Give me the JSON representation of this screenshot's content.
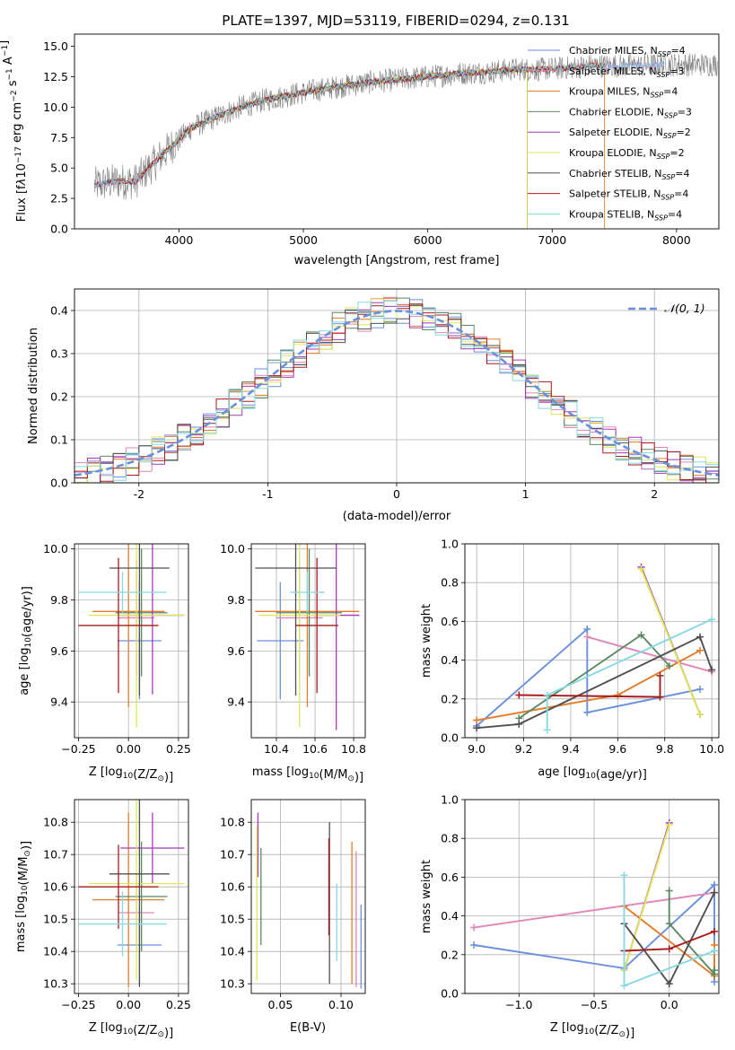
{
  "chart_data": [
    {
      "type": "line",
      "title": "PLATE=1397, MJD=53119, FIBERID=0294, z=0.131",
      "xlabel": "wavelength [Angstrom, rest frame]",
      "ylabel": "Flux [f",
      "ylabel_parts": [
        "Flux [f",
        "λ",
        "10",
        "−17",
        " erg cm",
        "−2",
        " s",
        "−1",
        " A",
        "−1",
        "]"
      ],
      "xlim": [
        3160,
        8340
      ],
      "ylim": [
        0,
        16
      ],
      "xticks": [
        4000,
        5000,
        6000,
        7000,
        8000
      ],
      "yticks": [
        0.0,
        2.5,
        5.0,
        7.5,
        10.0,
        12.5,
        15.0
      ],
      "legend_location": "top-right",
      "legend": [
        {
          "pre": "Chabrier MILES, N",
          "sub": "SSP",
          "post": "=4",
          "color": "#6a8fdc"
        },
        {
          "pre": "Salpeter MILES, N",
          "sub": "SSP",
          "post": "=3",
          "color": "#e086b8"
        },
        {
          "pre": "Kroupa MILES, N",
          "sub": "SSP",
          "post": "=4",
          "color": "#e07c2a"
        },
        {
          "pre": "Chabrier ELODIE, N",
          "sub": "SSP",
          "post": "=3",
          "color": "#5b8a63"
        },
        {
          "pre": "Salpeter ELODIE, N",
          "sub": "SSP",
          "post": "=2",
          "color": "#a23ab8"
        },
        {
          "pre": "Kroupa ELODIE, N",
          "sub": "SSP",
          "post": "=2",
          "color": "#dfe75a"
        },
        {
          "pre": "Chabrier STELIB, N",
          "sub": "SSP",
          "post": "=4",
          "color": "#505050"
        },
        {
          "pre": "Salpeter STELIB, N",
          "sub": "SSP",
          "post": "=4",
          "color": "#a71b1b"
        },
        {
          "pre": "Kroupa STELIB, N",
          "sub": "SSP",
          "post": "=4",
          "color": "#86d8e2"
        }
      ],
      "continuum_x": [
        3320,
        3500,
        3650,
        3800,
        3950,
        4100,
        4300,
        4500,
        4700,
        4900,
        5100,
        5300,
        5500,
        5700,
        5900,
        6100,
        6300,
        6500,
        6700,
        6900,
        7100,
        7300,
        7500,
        7700,
        7900,
        8100,
        8300
      ],
      "continuum_y": [
        3.6,
        3.9,
        3.9,
        5.4,
        6.9,
        8.3,
        9.2,
        10.0,
        10.6,
        11.0,
        11.4,
        11.7,
        12.0,
        12.2,
        12.4,
        12.6,
        12.8,
        12.9,
        13.1,
        13.1,
        13.2,
        13.4,
        13.4,
        13.4,
        13.5,
        13.5,
        13.5
      ],
      "data_xrange": [
        3320,
        8330
      ],
      "model_xranges": [
        [
          3320,
          7900
        ],
        [
          3320,
          7900
        ],
        [
          3500,
          7420
        ],
        [
          3900,
          6800
        ],
        [
          3900,
          6800
        ],
        [
          3900,
          6800
        ],
        [
          3320,
          7420
        ],
        [
          3320,
          7420
        ],
        [
          3320,
          7900
        ]
      ]
    },
    {
      "type": "line",
      "xlabel": "(data-model)/error",
      "ylabel": "Normed distribution",
      "xlim": [
        -2.5,
        2.5
      ],
      "ylim": [
        0,
        0.45
      ],
      "xticks": [
        -2,
        -1,
        0,
        1,
        2
      ],
      "yticks": [
        0.0,
        0.1,
        0.2,
        0.3,
        0.4
      ],
      "legend_location": "top-right",
      "legend": [
        {
          "label": "𝒩(0, 1)",
          "color": "#6a8fdc"
        }
      ],
      "gaussian": {
        "mean": 0,
        "sigma": 1
      },
      "bin_width": 0.1,
      "series_colors": [
        "#6a8fdc",
        "#e086b8",
        "#e07c2a",
        "#5b8a63",
        "#a23ab8",
        "#dfe75a",
        "#505050",
        "#a71b1b",
        "#86d8e2"
      ]
    },
    {
      "type": "scatter",
      "xlabel": "Z [log10(Z/Z⊙)]",
      "xlabel_parts": [
        "Z [log",
        "10",
        "(Z/Z",
        "⊙",
        ")]"
      ],
      "ylabel": "age [log10(age/yr)]",
      "ylabel_parts": [
        "age  [log",
        "10",
        "(age/yr)]"
      ],
      "xlim": [
        -0.27,
        0.3
      ],
      "ylim": [
        9.26,
        10.02
      ],
      "xticks": [
        -0.25,
        0.0,
        0.25
      ],
      "xticklabels": [
        "−0.25",
        "0.00",
        "0.25"
      ],
      "yticks": [
        9.4,
        9.6,
        9.8,
        10.0
      ],
      "points": [
        {
          "color": "#6a8fdc",
          "x": 0.055,
          "xerr": 0.11,
          "y": 9.64,
          "yerr": 0.23
        },
        {
          "color": "#e086b8",
          "x": 0.04,
          "xerr": 0.09,
          "y": 9.73,
          "yerr": 0.23
        },
        {
          "color": "#e07c2a",
          "x": 0.0,
          "xerr": 0.18,
          "y": 9.755,
          "yerr": 0.375
        },
        {
          "color": "#5b8a63",
          "x": 0.065,
          "xerr": 0.13,
          "y": 9.75,
          "yerr": 0.25
        },
        {
          "color": "#a23ab8",
          "x": 0.12,
          "xerr": 0.16,
          "y": 9.74,
          "yerr": 0.31
        },
        {
          "color": "#dfe75a",
          "x": 0.04,
          "xerr": 0.24,
          "y": 9.74,
          "yerr": 0.44
        },
        {
          "color": "#505050",
          "x": 0.055,
          "xerr": 0.15,
          "y": 9.925,
          "yerr": 0.5
        },
        {
          "color": "#a71b1b",
          "x": -0.05,
          "xerr": 0.2,
          "y": 9.7,
          "yerr": 0.265
        },
        {
          "color": "#86d8e2",
          "x": -0.03,
          "xerr": 0.22,
          "y": 9.83,
          "yerr": 0.08
        }
      ]
    },
    {
      "type": "scatter",
      "xlabel": "mass [log10(M/M⊙)]",
      "xlabel_parts": [
        "mass [log",
        "10",
        "(M/M",
        "⊙",
        ")]"
      ],
      "xlim": [
        10.27,
        10.86
      ],
      "ylim": [
        9.26,
        10.02
      ],
      "xticks": [
        10.4,
        10.6,
        10.8
      ],
      "yticks": [
        9.4,
        9.6,
        9.8,
        10.0
      ],
      "points": [
        {
          "color": "#6a8fdc",
          "x": 10.42,
          "xerr": 0.12,
          "y": 9.64,
          "yerr": 0.23
        },
        {
          "color": "#e086b8",
          "x": 10.52,
          "xerr": 0.12,
          "y": 9.73,
          "yerr": 0.23
        },
        {
          "color": "#e07c2a",
          "x": 10.56,
          "xerr": 0.27,
          "y": 9.755,
          "yerr": 0.375
        },
        {
          "color": "#5b8a63",
          "x": 10.57,
          "xerr": 0.17,
          "y": 9.75,
          "yerr": 0.25
        },
        {
          "color": "#a23ab8",
          "x": 10.71,
          "xerr": 0.12,
          "y": 9.74,
          "yerr": 0.45
        },
        {
          "color": "#dfe75a",
          "x": 10.52,
          "xerr": 0.21,
          "y": 9.74,
          "yerr": 0.44
        },
        {
          "color": "#505050",
          "x": 10.5,
          "xerr": 0.21,
          "y": 9.925,
          "yerr": 0.5
        },
        {
          "color": "#a71b1b",
          "x": 10.61,
          "xerr": 0.11,
          "y": 9.7,
          "yerr": 0.265
        },
        {
          "color": "#86d8e2",
          "x": 10.56,
          "xerr": 0.09,
          "y": 9.83,
          "yerr": 0.08
        }
      ]
    },
    {
      "type": "line",
      "xlabel": "age [log10(age/yr)]",
      "xlabel_parts": [
        "age  [log",
        "10",
        "(age/yr)]"
      ],
      "ylabel": "mass weight",
      "xlim": [
        8.95,
        10.03
      ],
      "ylim": [
        0.0,
        1.0
      ],
      "xticks": [
        9.0,
        9.2,
        9.4,
        9.6,
        9.8,
        10.0
      ],
      "yticks": [
        0.0,
        0.2,
        0.4,
        0.6,
        0.8,
        1.0
      ],
      "series": [
        {
          "color": "#6a8fdc",
          "x": [
            9.0,
            9.47,
            9.47,
            9.95
          ],
          "y": [
            0.06,
            0.56,
            0.13,
            0.25
          ]
        },
        {
          "color": "#e086b8",
          "x": [
            9.47,
            10.0
          ],
          "y": [
            0.52,
            0.34
          ]
        },
        {
          "color": "#e07c2a",
          "x": [
            9.0,
            9.6,
            9.95
          ],
          "y": [
            0.09,
            0.22,
            0.45
          ]
        },
        {
          "color": "#5b8a63",
          "x": [
            9.18,
            9.7,
            9.82
          ],
          "y": [
            0.1,
            0.53,
            0.37
          ]
        },
        {
          "color": "#a23ab8",
          "x": [
            9.7,
            9.95
          ],
          "y": [
            0.88,
            0.12
          ]
        },
        {
          "color": "#dfe75a",
          "x": [
            9.7,
            9.95
          ],
          "y": [
            0.87,
            0.12
          ]
        },
        {
          "color": "#505050",
          "x": [
            9.0,
            9.18,
            9.95,
            10.0
          ],
          "y": [
            0.05,
            0.07,
            0.52,
            0.35
          ]
        },
        {
          "color": "#a71b1b",
          "x": [
            9.18,
            9.78,
            9.78
          ],
          "y": [
            0.22,
            0.21,
            0.32
          ]
        },
        {
          "color": "#86d8e2",
          "x": [
            9.3,
            9.3,
            10.0
          ],
          "y": [
            0.04,
            0.22,
            0.61
          ]
        }
      ]
    },
    {
      "type": "scatter",
      "xlabel": "Z [log10(Z/Z⊙)]",
      "xlabel_parts": [
        "Z [log",
        "10",
        "(Z/Z",
        "⊙",
        ")]"
      ],
      "ylabel": "mass [log10(M/M⊙)]",
      "ylabel_parts": [
        "mass [log",
        "10",
        "(M/M",
        "⊙",
        ")]"
      ],
      "xlim": [
        -0.27,
        0.3
      ],
      "ylim": [
        10.27,
        10.87
      ],
      "xticks": [
        -0.25,
        0.0,
        0.25
      ],
      "xticklabels": [
        "−0.25",
        "0.00",
        "0.25"
      ],
      "yticks": [
        10.3,
        10.4,
        10.5,
        10.6,
        10.7,
        10.8
      ],
      "points": [
        {
          "color": "#6a8fdc",
          "x": 0.055,
          "xerr": 0.11,
          "y": 10.42,
          "yerr": 0.12
        },
        {
          "color": "#e086b8",
          "x": 0.04,
          "xerr": 0.09,
          "y": 10.52,
          "yerr": 0.12
        },
        {
          "color": "#e07c2a",
          "x": 0.0,
          "xerr": 0.18,
          "y": 10.56,
          "yerr": 0.27
        },
        {
          "color": "#5b8a63",
          "x": 0.065,
          "xerr": 0.13,
          "y": 10.57,
          "yerr": 0.17
        },
        {
          "color": "#a23ab8",
          "x": 0.12,
          "xerr": 0.16,
          "y": 10.72,
          "yerr": 0.11
        },
        {
          "color": "#dfe75a",
          "x": 0.04,
          "xerr": 0.24,
          "y": 10.61,
          "yerr": 0.3
        },
        {
          "color": "#505050",
          "x": 0.055,
          "xerr": 0.15,
          "y": 10.64,
          "yerr": 0.35
        },
        {
          "color": "#a71b1b",
          "x": -0.05,
          "xerr": 0.2,
          "y": 10.6,
          "yerr": 0.13
        },
        {
          "color": "#86d8e2",
          "x": -0.03,
          "xerr": 0.22,
          "y": 10.485,
          "yerr": 0.1
        }
      ]
    },
    {
      "type": "scatter",
      "xlabel": "E(B-V)",
      "xlim": [
        0.026,
        0.12
      ],
      "ylim": [
        10.27,
        10.87
      ],
      "xticks": [
        0.05,
        0.1
      ],
      "xticklabels": [
        "0.05",
        "0.10"
      ],
      "yticks": [
        10.3,
        10.4,
        10.5,
        10.6,
        10.7,
        10.8
      ],
      "points": [
        {
          "color": "#6a8fdc",
          "x": 0.1165,
          "y": 10.415,
          "yerr": 0.13
        },
        {
          "color": "#e086b8",
          "x": 0.1125,
          "y": 10.5,
          "yerr": 0.21
        },
        {
          "color": "#e07c2a",
          "x": 0.109,
          "y": 10.52,
          "yerr": 0.22
        },
        {
          "color": "#5b8a63",
          "x": 0.034,
          "y": 10.57,
          "yerr": 0.15
        },
        {
          "color": "#a23ab8",
          "x": 0.0315,
          "y": 10.73,
          "yerr": 0.1
        },
        {
          "color": "#dfe75a",
          "x": 0.0305,
          "y": 10.55,
          "yerr": 0.24
        },
        {
          "color": "#505050",
          "x": 0.0905,
          "y": 10.55,
          "yerr": 0.25
        },
        {
          "color": "#a71b1b",
          "x": 0.09,
          "y": 10.6,
          "yerr": 0.15
        },
        {
          "color": "#86d8e2",
          "x": 0.0965,
          "y": 10.49,
          "yerr": 0.12
        }
      ]
    },
    {
      "type": "line",
      "xlabel": "Z [log10(Z/Z⊙)]",
      "xlabel_parts": [
        "Z [log",
        "10",
        "(Z/Z",
        "⊙",
        ")]"
      ],
      "ylabel": "mass weight",
      "xlim": [
        -1.36,
        0.33
      ],
      "ylim": [
        0.0,
        1.0
      ],
      "xticks": [
        -1.0,
        -0.5,
        0.0
      ],
      "xticklabels": [
        "−1.0",
        "−0.5",
        "0.0"
      ],
      "yticks": [
        0.0,
        0.2,
        0.4,
        0.6,
        0.8,
        1.0
      ],
      "series": [
        {
          "color": "#6a8fdc",
          "x": [
            -1.3,
            -0.3,
            0.3,
            0.3
          ],
          "y": [
            0.25,
            0.13,
            0.56,
            0.06
          ]
        },
        {
          "color": "#e086b8",
          "x": [
            -1.3,
            0.3
          ],
          "y": [
            0.34,
            0.52
          ]
        },
        {
          "color": "#e07c2a",
          "x": [
            -0.3,
            0.3,
            0.3
          ],
          "y": [
            0.45,
            0.09,
            0.25
          ]
        },
        {
          "color": "#5b8a63",
          "x": [
            0.0,
            0.0,
            0.3,
            0.3
          ],
          "y": [
            0.53,
            0.36,
            0.1,
            0.12
          ]
        },
        {
          "color": "#a23ab8",
          "x": [
            -0.3,
            0.0
          ],
          "y": [
            0.12,
            0.88
          ]
        },
        {
          "color": "#dfe75a",
          "x": [
            -0.3,
            0.0
          ],
          "y": [
            0.12,
            0.87
          ]
        },
        {
          "color": "#505050",
          "x": [
            -0.3,
            0.0,
            0.3
          ],
          "y": [
            0.36,
            0.05,
            0.52
          ]
        },
        {
          "color": "#a71b1b",
          "x": [
            -0.3,
            0.0,
            0.3
          ],
          "y": [
            0.22,
            0.23,
            0.32
          ]
        },
        {
          "color": "#86d8e2",
          "x": [
            -0.3,
            -0.3,
            0.3
          ],
          "y": [
            0.61,
            0.04,
            0.22
          ]
        }
      ]
    }
  ]
}
